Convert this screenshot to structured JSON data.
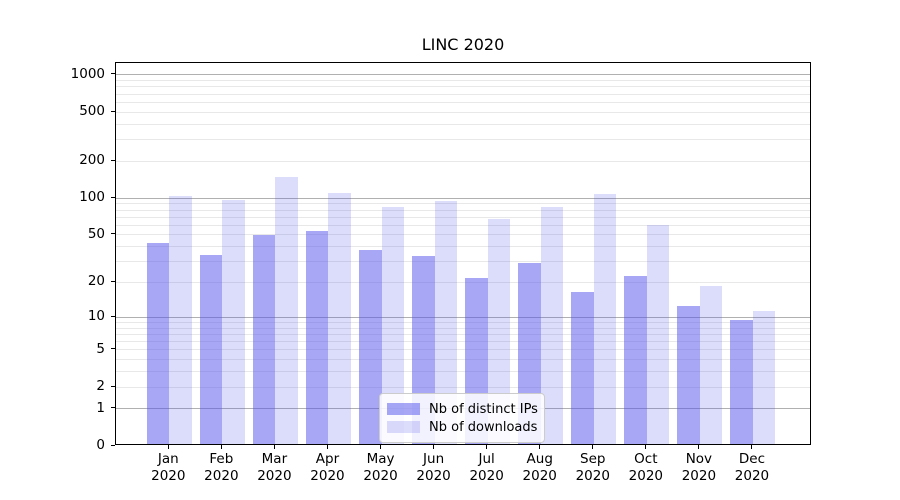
{
  "window": {
    "title": "LINC 2020"
  },
  "chart_data": {
    "type": "bar",
    "title": "LINC 2020",
    "categories": [
      "Jan 2020",
      "Feb 2020",
      "Mar 2020",
      "Apr 2020",
      "May 2020",
      "Jun 2020",
      "Jul 2020",
      "Aug 2020",
      "Sep 2020",
      "Oct 2020",
      "Nov 2020",
      "Dec 2020"
    ],
    "x_tick_month": [
      "Jan",
      "Feb",
      "Mar",
      "Apr",
      "May",
      "Jun",
      "Jul",
      "Aug",
      "Sep",
      "Oct",
      "Nov",
      "Dec"
    ],
    "x_tick_year": "2020",
    "series": [
      {
        "name": "Nb of distinct IPs",
        "color": "rgba(80,80,235,0.5)",
        "values": [
          41,
          33,
          48,
          52,
          36,
          32,
          21,
          28,
          16,
          22,
          12,
          9
        ]
      },
      {
        "name": "Nb of downloads",
        "color": "rgba(80,80,235,0.2)",
        "values": [
          100,
          93,
          144,
          107,
          81,
          91,
          65,
          81,
          105,
          58,
          18,
          11
        ]
      }
    ],
    "y_scale": "log1p",
    "ylim": [
      0,
      1250
    ],
    "y_ticks_labeled": [
      1000,
      500,
      200,
      100,
      50,
      20,
      10,
      5,
      2,
      1,
      0
    ],
    "y_major_gridlines": [
      1,
      10,
      100,
      1000
    ],
    "y_minor_gridlines": [
      2,
      3,
      4,
      5,
      6,
      7,
      8,
      9,
      20,
      30,
      40,
      50,
      60,
      70,
      80,
      90,
      200,
      300,
      400,
      500,
      600,
      700,
      800,
      900
    ],
    "grid": true,
    "legend_position": "lower center"
  },
  "colors": {
    "bar_base": "#5050eb",
    "major_grid": "#b0b0b0",
    "minor_grid": "#e8e8e8",
    "axis": "#000000",
    "background": "#ffffff",
    "legend_bg": "rgba(255,255,255,0.85)",
    "legend_border": "#cccccc"
  }
}
